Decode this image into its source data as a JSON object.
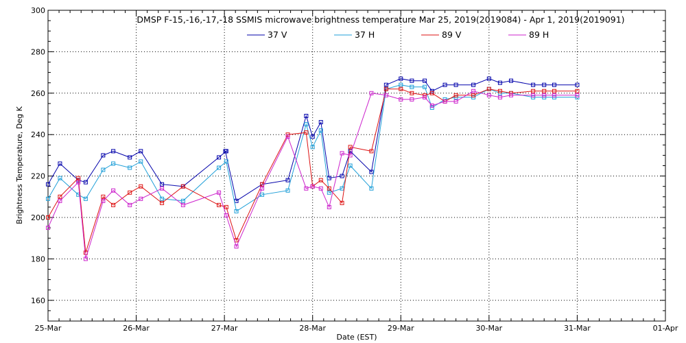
{
  "chart_data": {
    "type": "line",
    "title": "DMSP F-15,-16,-17,-18 SSMIS microwave brightness temperature Mar 25, 2019(2019084) - Apr  1, 2019(2019091)",
    "xlabel": "Date (EST)",
    "ylabel": "Brightness Temperature, Deg K",
    "x_range": [
      "2019-03-25T00:00",
      "2019-04-01T00:00"
    ],
    "ylim": [
      150,
      300
    ],
    "x_ticks": [
      "25-Mar",
      "26-Mar",
      "27-Mar",
      "28-Mar",
      "29-Mar",
      "30-Mar",
      "31-Mar",
      "01-Apr"
    ],
    "y_ticks": [
      "160",
      "180",
      "200",
      "220",
      "240",
      "260",
      "280",
      "300"
    ],
    "grid": true,
    "legend_position": "top-center",
    "series": [
      {
        "name": "37 V",
        "color": "#0000aa",
        "x": [
          "2019-03-25T00:00",
          "2019-03-25T03:15",
          "2019-03-25T08:15",
          "2019-03-25T10:15",
          "2019-03-25T15:00",
          "2019-03-25T17:45",
          "2019-03-25T22:15",
          "2019-03-26T01:15",
          "2019-03-26T07:00",
          "2019-03-26T12:45",
          "2019-03-26T22:30",
          "2019-03-27T00:30",
          "2019-03-27T00:15",
          "2019-03-27T03:15",
          "2019-03-27T10:15",
          "2019-03-27T17:15",
          "2019-03-27T22:15",
          "2019-03-28T00:00",
          "2019-03-28T02:15",
          "2019-03-28T04:30",
          "2019-03-28T08:00",
          "2019-03-28T10:15",
          "2019-03-28T16:00",
          "2019-03-28T20:00",
          "2019-03-29T00:00",
          "2019-03-29T03:00",
          "2019-03-29T06:30",
          "2019-03-29T08:30",
          "2019-03-29T12:00",
          "2019-03-29T15:00",
          "2019-03-29T19:45",
          "2019-03-30T00:00",
          "2019-03-30T03:00",
          "2019-03-30T06:00",
          "2019-03-30T12:00",
          "2019-03-30T15:00",
          "2019-03-30T17:45",
          "2019-03-31T00:00"
        ],
        "values": [
          216,
          226,
          218,
          217,
          230,
          232,
          229,
          232,
          216,
          215,
          229,
          232,
          232,
          208,
          216,
          218,
          249,
          239,
          246,
          219,
          220,
          232,
          222,
          264,
          267,
          266,
          266,
          261,
          264,
          264,
          264,
          267,
          265,
          266,
          264,
          264,
          264,
          264
        ]
      },
      {
        "name": "37 H",
        "color": "#1f9fd8",
        "x": [
          "2019-03-25T00:00",
          "2019-03-25T03:15",
          "2019-03-25T08:15",
          "2019-03-25T10:15",
          "2019-03-25T15:00",
          "2019-03-25T17:45",
          "2019-03-25T22:15",
          "2019-03-26T01:15",
          "2019-03-26T07:00",
          "2019-03-26T12:45",
          "2019-03-26T22:30",
          "2019-03-27T00:30",
          "2019-03-27T03:15",
          "2019-03-27T10:15",
          "2019-03-27T17:15",
          "2019-03-27T22:15",
          "2019-03-28T00:00",
          "2019-03-28T02:15",
          "2019-03-28T04:30",
          "2019-03-28T08:00",
          "2019-03-28T10:15",
          "2019-03-28T16:00",
          "2019-03-28T20:00",
          "2019-03-29T00:00",
          "2019-03-29T03:00",
          "2019-03-29T06:30",
          "2019-03-29T08:30",
          "2019-03-29T12:00",
          "2019-03-29T15:00",
          "2019-03-29T19:45",
          "2019-03-30T00:00",
          "2019-03-30T03:00",
          "2019-03-30T06:00",
          "2019-03-30T12:00",
          "2019-03-30T15:00",
          "2019-03-30T17:45",
          "2019-03-31T00:00"
        ],
        "values": [
          209,
          219,
          211,
          209,
          223,
          226,
          224,
          227,
          209,
          208,
          224,
          227,
          203,
          211,
          213,
          245,
          234,
          242,
          212,
          214,
          225,
          214,
          262,
          264,
          263,
          263,
          253,
          257,
          258,
          258,
          262,
          260,
          260,
          258,
          258,
          258,
          258
        ]
      },
      {
        "name": "89 V",
        "color": "#dd1111",
        "x": [
          "2019-03-25T00:00",
          "2019-03-25T03:15",
          "2019-03-25T08:15",
          "2019-03-25T10:15",
          "2019-03-25T15:00",
          "2019-03-25T17:45",
          "2019-03-25T22:15",
          "2019-03-26T01:15",
          "2019-03-26T07:00",
          "2019-03-26T12:45",
          "2019-03-26T22:30",
          "2019-03-27T00:30",
          "2019-03-27T03:15",
          "2019-03-27T10:15",
          "2019-03-27T17:15",
          "2019-03-27T22:15",
          "2019-03-28T00:00",
          "2019-03-28T02:15",
          "2019-03-28T04:30",
          "2019-03-28T08:00",
          "2019-03-28T10:15",
          "2019-03-28T16:00",
          "2019-03-28T20:00",
          "2019-03-29T00:00",
          "2019-03-29T03:00",
          "2019-03-29T06:30",
          "2019-03-29T08:30",
          "2019-03-29T12:00",
          "2019-03-29T15:00",
          "2019-03-29T19:45",
          "2019-03-30T00:00",
          "2019-03-30T03:00",
          "2019-03-30T06:00",
          "2019-03-30T12:00",
          "2019-03-30T15:00",
          "2019-03-30T17:45",
          "2019-03-31T00:00"
        ],
        "values": [
          200,
          210,
          219,
          183,
          210,
          206,
          212,
          215,
          207,
          215,
          206,
          205,
          189,
          216,
          240,
          241,
          215,
          218,
          214,
          207,
          234,
          232,
          262,
          262,
          260,
          259,
          260,
          256,
          259,
          259,
          262,
          261,
          260,
          261,
          261,
          261,
          261
        ]
      },
      {
        "name": "89 H",
        "color": "#cc22cc",
        "x": [
          "2019-03-25T00:00",
          "2019-03-25T03:15",
          "2019-03-25T08:15",
          "2019-03-25T10:15",
          "2019-03-25T15:00",
          "2019-03-25T17:45",
          "2019-03-25T22:15",
          "2019-03-26T01:15",
          "2019-03-26T07:00",
          "2019-03-26T12:45",
          "2019-03-26T22:30",
          "2019-03-27T00:30",
          "2019-03-27T03:15",
          "2019-03-27T10:15",
          "2019-03-27T17:15",
          "2019-03-27T22:15",
          "2019-03-28T00:00",
          "2019-03-28T02:15",
          "2019-03-28T04:30",
          "2019-03-28T08:00",
          "2019-03-28T10:15",
          "2019-03-28T16:00",
          "2019-03-28T20:00",
          "2019-03-29T00:00",
          "2019-03-29T03:00",
          "2019-03-29T06:30",
          "2019-03-29T08:30",
          "2019-03-29T12:00",
          "2019-03-29T15:00",
          "2019-03-29T19:45",
          "2019-03-30T00:00",
          "2019-03-30T03:00",
          "2019-03-30T06:00",
          "2019-03-30T12:00",
          "2019-03-30T15:00",
          "2019-03-30T17:45",
          "2019-03-31T00:00"
        ],
        "values": [
          195,
          208,
          217,
          180,
          208,
          213,
          206,
          209,
          214,
          206,
          212,
          201,
          186,
          214,
          239,
          214,
          215,
          214,
          205,
          231,
          230,
          260,
          259,
          257,
          257,
          258,
          254,
          256,
          256,
          261,
          259,
          258,
          259,
          259,
          259,
          259,
          259
        ]
      }
    ]
  }
}
